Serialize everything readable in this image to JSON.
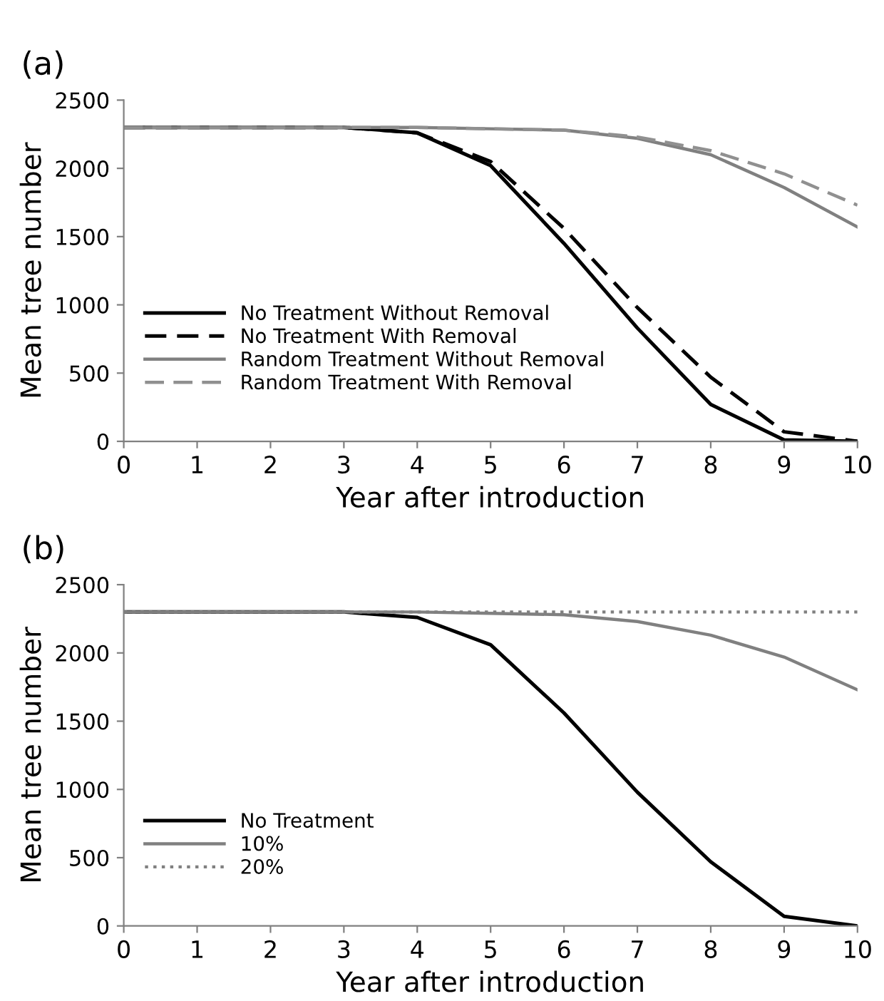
{
  "chart_data": [
    {
      "type": "line",
      "title": "(a)",
      "xlabel": "Year after introduction",
      "ylabel": "Mean tree number",
      "x": [
        0,
        1,
        2,
        3,
        4,
        5,
        6,
        7,
        8,
        9,
        10
      ],
      "series": [
        {
          "name": "No Treatment Without Removal",
          "color": "#000000",
          "line_style": "solid",
          "values": [
            2300,
            2300,
            2300,
            2300,
            2260,
            2020,
            1450,
            830,
            270,
            10,
            0
          ]
        },
        {
          "name": "No Treatment With Removal",
          "color": "#000000",
          "line_style": "dashed",
          "values": [
            2300,
            2300,
            2300,
            2300,
            2260,
            2050,
            1560,
            980,
            470,
            70,
            0
          ]
        },
        {
          "name": "Random Treatment Without Removal",
          "color": "#808080",
          "line_style": "solid",
          "values": [
            2300,
            2300,
            2300,
            2300,
            2300,
            2290,
            2280,
            2220,
            2100,
            1860,
            1570
          ]
        },
        {
          "name": "Random Treatment With Removal",
          "color": "#909090",
          "line_style": "dashed",
          "values": [
            2300,
            2300,
            2300,
            2300,
            2300,
            2290,
            2280,
            2230,
            2130,
            1960,
            1730
          ]
        }
      ],
      "xlim": [
        0,
        10
      ],
      "xticks": [
        0,
        1,
        2,
        3,
        4,
        5,
        6,
        7,
        8,
        9,
        10
      ],
      "ylim": [
        0,
        2500
      ],
      "yticks": [
        0,
        500,
        1000,
        1500,
        2000,
        2500
      ],
      "legend": "bottom left",
      "grid": false,
      "marker": "none"
    },
    {
      "type": "line",
      "title": "(b)",
      "xlabel": "Year after introduction",
      "ylabel": "Mean tree number",
      "x": [
        0,
        1,
        2,
        3,
        4,
        5,
        6,
        7,
        8,
        9,
        10
      ],
      "series": [
        {
          "name": "No Treatment",
          "color": "#000000",
          "line_style": "solid",
          "values": [
            2300,
            2300,
            2300,
            2300,
            2260,
            2060,
            1560,
            980,
            470,
            70,
            0
          ]
        },
        {
          "name": "10%",
          "color": "#808080",
          "line_style": "solid",
          "values": [
            2300,
            2300,
            2300,
            2300,
            2300,
            2290,
            2280,
            2230,
            2130,
            1970,
            1730
          ]
        },
        {
          "name": "20%",
          "color": "#808080",
          "line_style": "dotted",
          "values": [
            2300,
            2300,
            2300,
            2300,
            2300,
            2300,
            2300,
            2300,
            2300,
            2300,
            2300
          ]
        }
      ],
      "xlim": [
        0,
        10
      ],
      "xticks": [
        0,
        1,
        2,
        3,
        4,
        5,
        6,
        7,
        8,
        9,
        10
      ],
      "ylim": [
        0,
        2500
      ],
      "yticks": [
        0,
        500,
        1000,
        1500,
        2000,
        2500
      ],
      "legend": "bottom left",
      "grid": false,
      "marker": "none"
    }
  ]
}
